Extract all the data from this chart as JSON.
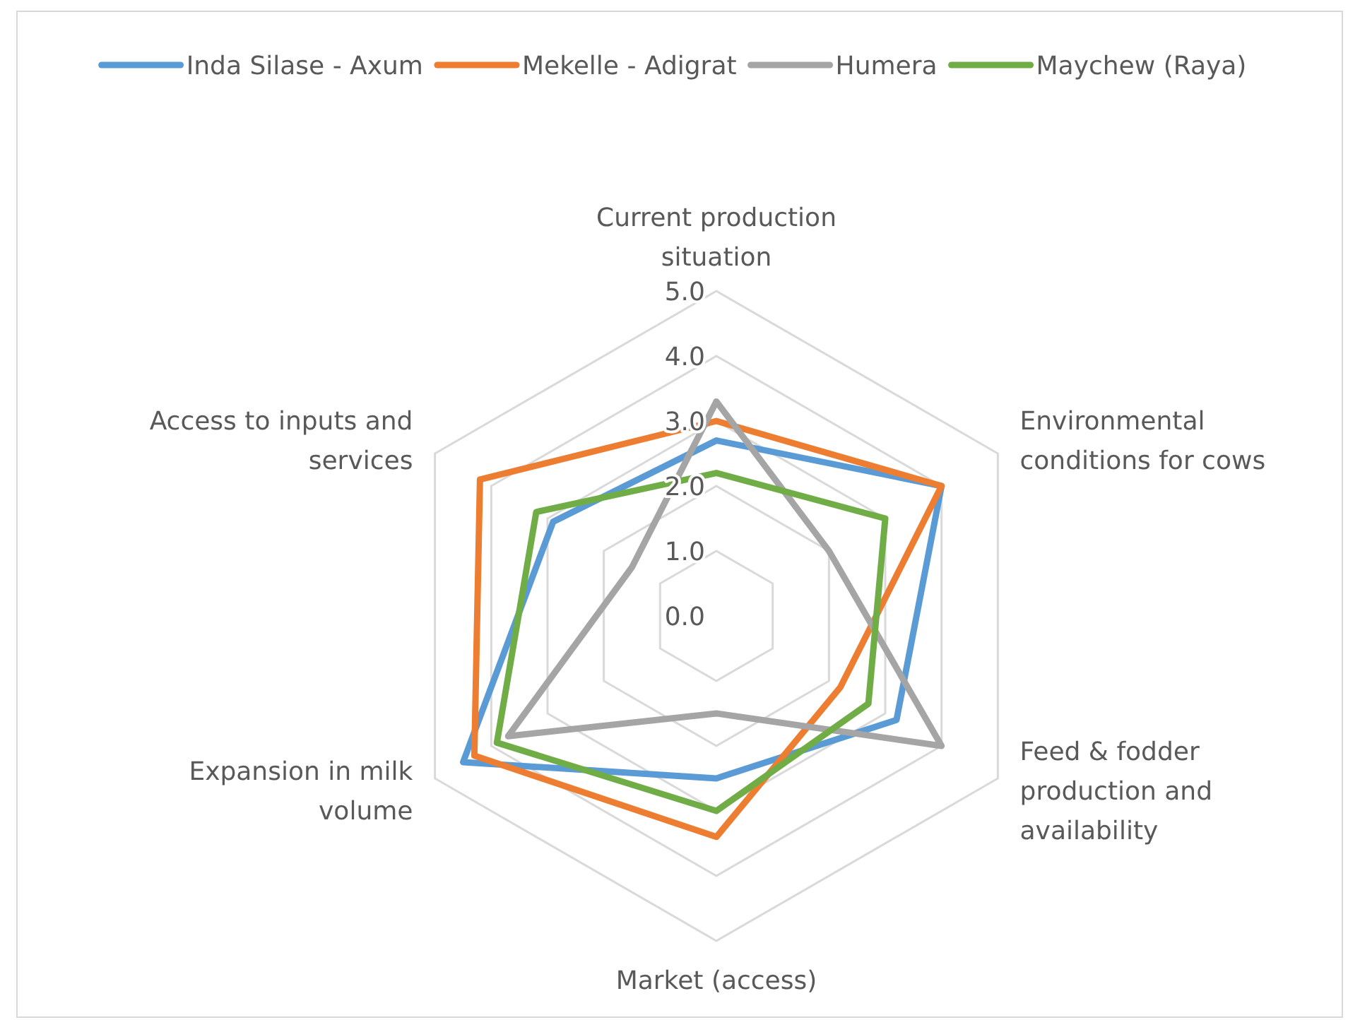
{
  "chart_data": {
    "type": "radar",
    "categories": [
      "Current production situation",
      "Environmental conditions for cows",
      "Feed & fodder production and availability",
      "Market (access)",
      "Expansion in milk volume",
      "Access to inputs and services"
    ],
    "ylim": [
      0,
      5
    ],
    "yticks": [
      {
        "value": 0,
        "label": "0.0"
      },
      {
        "value": 1,
        "label": "1.0"
      },
      {
        "value": 2,
        "label": "2.0"
      },
      {
        "value": 3,
        "label": "3.0"
      },
      {
        "value": 4,
        "label": "4.0"
      },
      {
        "value": 5,
        "label": "5.0"
      }
    ],
    "grid": true,
    "legend": "top",
    "series": [
      {
        "name": "Inda Silase - Axum",
        "color": "#5b9bd5",
        "values": [
          2.7,
          4.0,
          3.2,
          2.5,
          4.5,
          2.9
        ]
      },
      {
        "name": "Mekelle - Adigrat",
        "color": "#ed7d31",
        "values": [
          3.0,
          4.0,
          2.2,
          3.4,
          4.3,
          4.2
        ]
      },
      {
        "name": "Humera",
        "color": "#a5a5a5",
        "values": [
          3.3,
          2.0,
          4.0,
          1.5,
          3.7,
          1.5
        ]
      },
      {
        "name": "Maychew (Raya)",
        "color": "#70ad47",
        "values": [
          2.2,
          3.0,
          2.7,
          3.0,
          3.9,
          3.2
        ]
      }
    ]
  }
}
